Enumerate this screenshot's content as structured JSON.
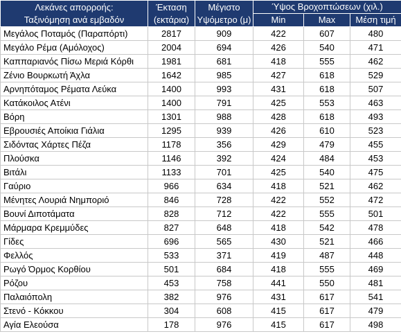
{
  "header": {
    "basin": [
      "Λεκάνες απορροής:",
      "Ταξινόμηση ανά εμβαδόν"
    ],
    "area": [
      "Έκταση",
      "(εκτάρια)"
    ],
    "elevation": [
      "Μέγιστο",
      "Υψόμετρο (μ)"
    ],
    "rainfall": "Ύψος Βροχοπτώσεων (χιλ.)",
    "rainfall_columns": [
      "Min",
      "Max",
      "Μέση τιμή"
    ]
  },
  "table": {
    "rows": [
      [
        "Μεγάλος Ποταμός (Παραπόρτι)",
        2817,
        909,
        422,
        607,
        480
      ],
      [
        "Μεγάλο Ρέμα (Αμόλοχος)",
        2004,
        694,
        426,
        540,
        471
      ],
      [
        "Καππαριανός Πίσω Μεριά Κόρθι",
        1981,
        681,
        418,
        555,
        462
      ],
      [
        "Ζένιο Βουρκωτή Άχλα",
        1642,
        985,
        427,
        618,
        529
      ],
      [
        "Αρνηπόταμος Ρέματα Λεύκα",
        1400,
        993,
        431,
        618,
        507
      ],
      [
        "Κατάκοιλος Ατένι",
        1400,
        791,
        425,
        553,
        463
      ],
      [
        "Βόρη",
        1301,
        988,
        428,
        618,
        493
      ],
      [
        "Εβρουσιές Αποίκια Γιάλια",
        1295,
        939,
        426,
        610,
        523
      ],
      [
        "Σιδόντας Χάρτες Πέζα",
        1178,
        356,
        429,
        479,
        455
      ],
      [
        "Πλούσκα",
        1146,
        392,
        424,
        484,
        453
      ],
      [
        "Βιτάλι",
        1133,
        701,
        425,
        540,
        475
      ],
      [
        "Γαύριο",
        966,
        634,
        418,
        521,
        462
      ],
      [
        "Μένητες Λουριά Νημποριό",
        846,
        728,
        422,
        552,
        472
      ],
      [
        "Βουνί Διποτάματα",
        828,
        712,
        422,
        555,
        501
      ],
      [
        "Μάρμαρα Κρεμμύδες",
        827,
        648,
        418,
        542,
        478
      ],
      [
        "Γίδες",
        696,
        565,
        430,
        521,
        466
      ],
      [
        "Φελλός",
        533,
        371,
        419,
        487,
        448
      ],
      [
        "Ρωγό Όρμος Κορθίου",
        501,
        684,
        418,
        555,
        469
      ],
      [
        "Ρόζου",
        453,
        758,
        441,
        550,
        481
      ],
      [
        "Παλαιόπολη",
        382,
        976,
        431,
        617,
        541
      ],
      [
        "Στενό - Κόκκου",
        304,
        608,
        415,
        617,
        479
      ],
      [
        "Αγία Ελεούσα",
        178,
        976,
        415,
        617,
        498
      ]
    ]
  }
}
